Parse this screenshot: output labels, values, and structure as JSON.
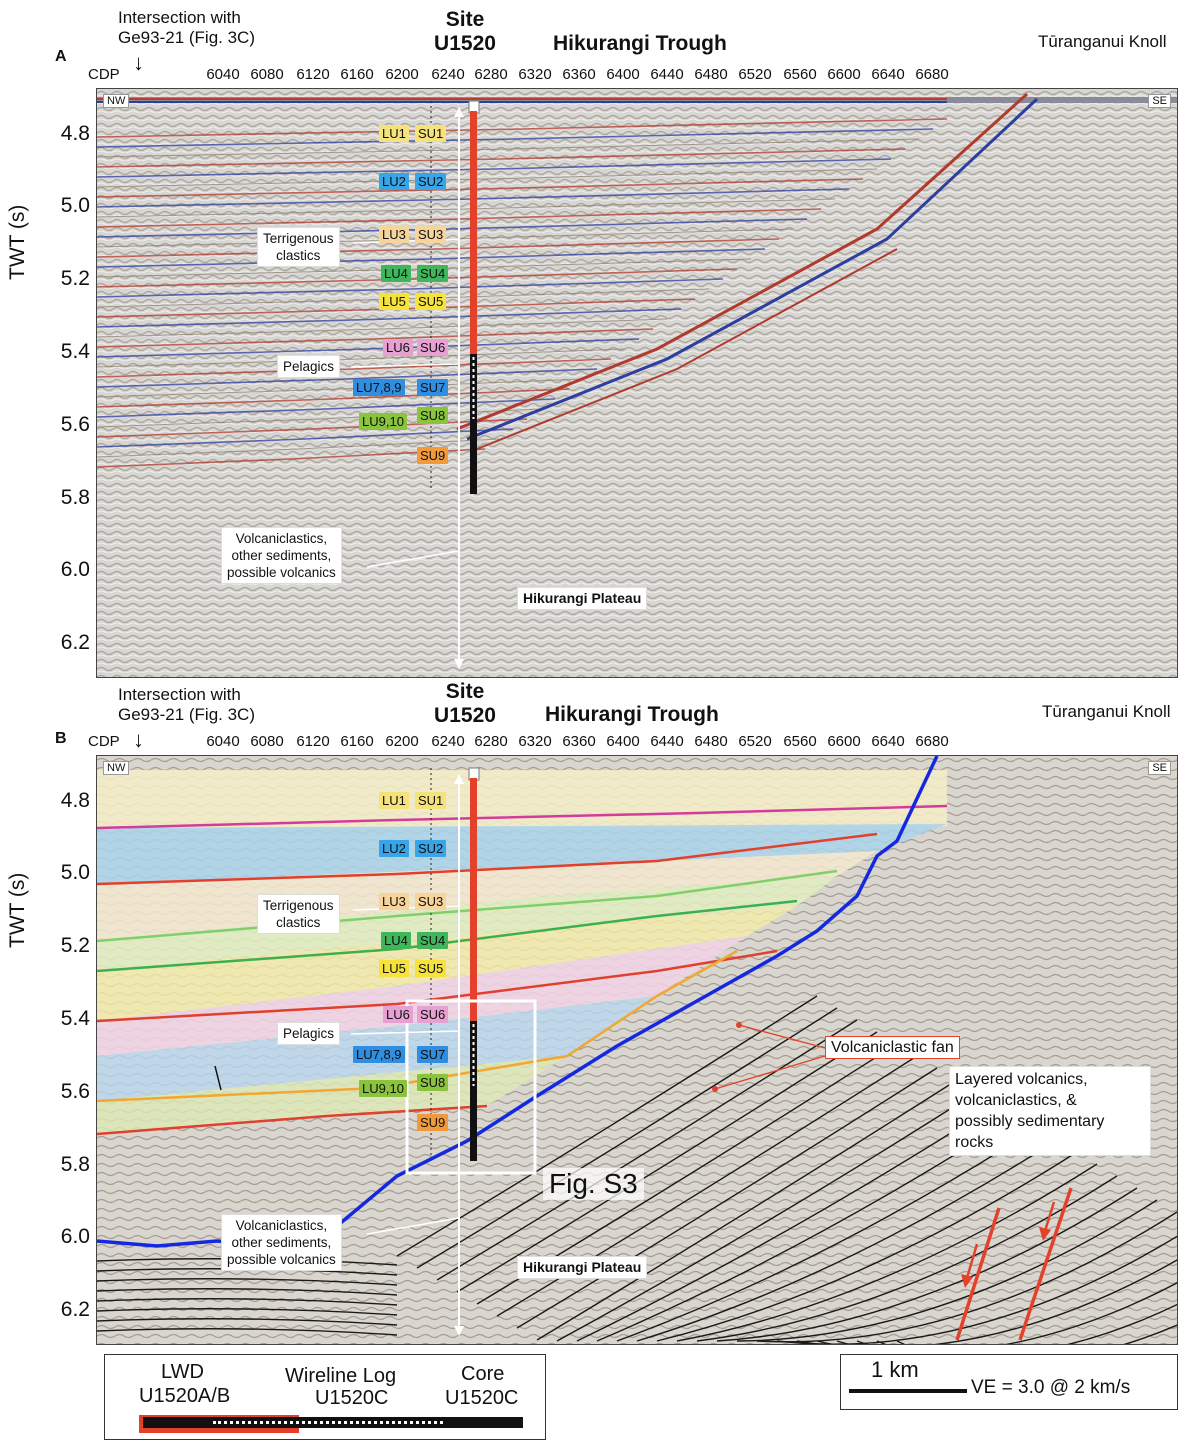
{
  "panels": [
    {
      "letter": "A",
      "intersection_line1": "Intersection with",
      "intersection_line2": "Ge93-21 (Fig. 3C)",
      "site_line1": "Site",
      "site_line2": "U1520",
      "trough": "Hikurangi Trough",
      "knoll": "Tūranganui Knoll",
      "cdp_label": "CDP",
      "cdp_ticks": [
        "6040",
        "6080",
        "6120",
        "6160",
        "6200",
        "6240",
        "6280",
        "6320",
        "6360",
        "6400",
        "6440",
        "6480",
        "6520",
        "6560",
        "6600",
        "6640",
        "6680"
      ],
      "y_axis_label": "TWT (s)",
      "y_ticks": [
        "4.8",
        "5.0",
        "5.2",
        "5.4",
        "5.6",
        "5.8",
        "6.0",
        "6.2"
      ],
      "nw": "NW",
      "se": "SE",
      "lu": [
        "LU1",
        "LU2",
        "LU3",
        "LU4",
        "LU5",
        "LU6",
        "LU7,8,9",
        "LU9,10"
      ],
      "su": [
        "SU1",
        "SU2",
        "SU3",
        "SU4",
        "SU5",
        "SU6",
        "SU7",
        "SU8",
        "SU9"
      ],
      "terrigenous_1": "Terrigenous",
      "terrigenous_2": "clastics",
      "pelagics": "Pelagics",
      "volc_1": "Volcaniclastics,",
      "volc_2": "other sediments,",
      "volc_3": "possible volcanics",
      "plateau": "Hikurangi Plateau"
    },
    {
      "letter": "B",
      "intersection_line1": "Intersection with",
      "intersection_line2": "Ge93-21 (Fig. 3C)",
      "site_line1": "Site",
      "site_line2": "U1520",
      "trough": "Hikurangi Trough",
      "knoll": "Tūranganui Knoll",
      "cdp_label": "CDP",
      "cdp_ticks": [
        "6040",
        "6080",
        "6120",
        "6160",
        "6200",
        "6240",
        "6280",
        "6320",
        "6360",
        "6400",
        "6440",
        "6480",
        "6520",
        "6560",
        "6600",
        "6640",
        "6680"
      ],
      "y_axis_label": "TWT (s)",
      "y_ticks": [
        "4.8",
        "5.0",
        "5.2",
        "5.4",
        "5.6",
        "5.8",
        "6.0",
        "6.2"
      ],
      "nw": "NW",
      "se": "SE",
      "lu": [
        "LU1",
        "LU2",
        "LU3",
        "LU4",
        "LU5",
        "LU6",
        "LU7,8,9",
        "LU9,10"
      ],
      "su": [
        "SU1",
        "SU2",
        "SU3",
        "SU4",
        "SU5",
        "SU6",
        "SU7",
        "SU8",
        "SU9"
      ],
      "terrigenous_1": "Terrigenous",
      "terrigenous_2": "clastics",
      "pelagics": "Pelagics",
      "volc_1": "Volcaniclastics,",
      "volc_2": "other sediments,",
      "volc_3": "possible volcanics",
      "plateau": "Hikurangi Plateau",
      "volc_fan": "Volcaniclastic fan",
      "layered_1": "Layered volcanics,",
      "layered_2": "volcaniclastics, &",
      "layered_3": "possibly sedimentary",
      "layered_4": "rocks",
      "fig_s3": "Fig. S3"
    }
  ],
  "legend": {
    "lwd_1": "LWD",
    "lwd_2": "U1520A/B",
    "wire_1": "Wireline Log",
    "wire_2": "U1520C",
    "core_1": "Core",
    "core_2": "U1520C",
    "scale": "1 km",
    "ve": "VE = 3.0 @ 2 km/s"
  },
  "colors": {
    "lwd": "#e4412b",
    "boundary_blue": "#1428e0",
    "fault_red": "#e4412b",
    "lu_unit_colors": [
      "#f5e27a",
      "#36a6e8",
      "#f6d49a",
      "#3fb65a",
      "#f5e23a",
      "#e6a0d2",
      "#2f8ee0",
      "#8ac43d"
    ],
    "su_unit_colors": [
      "#f5e27a",
      "#36a6e8",
      "#f6d49a",
      "#3fb65a",
      "#f5e23a",
      "#e6a0d2",
      "#2f8ee0",
      "#8ac43d",
      "#f29a3a"
    ]
  }
}
